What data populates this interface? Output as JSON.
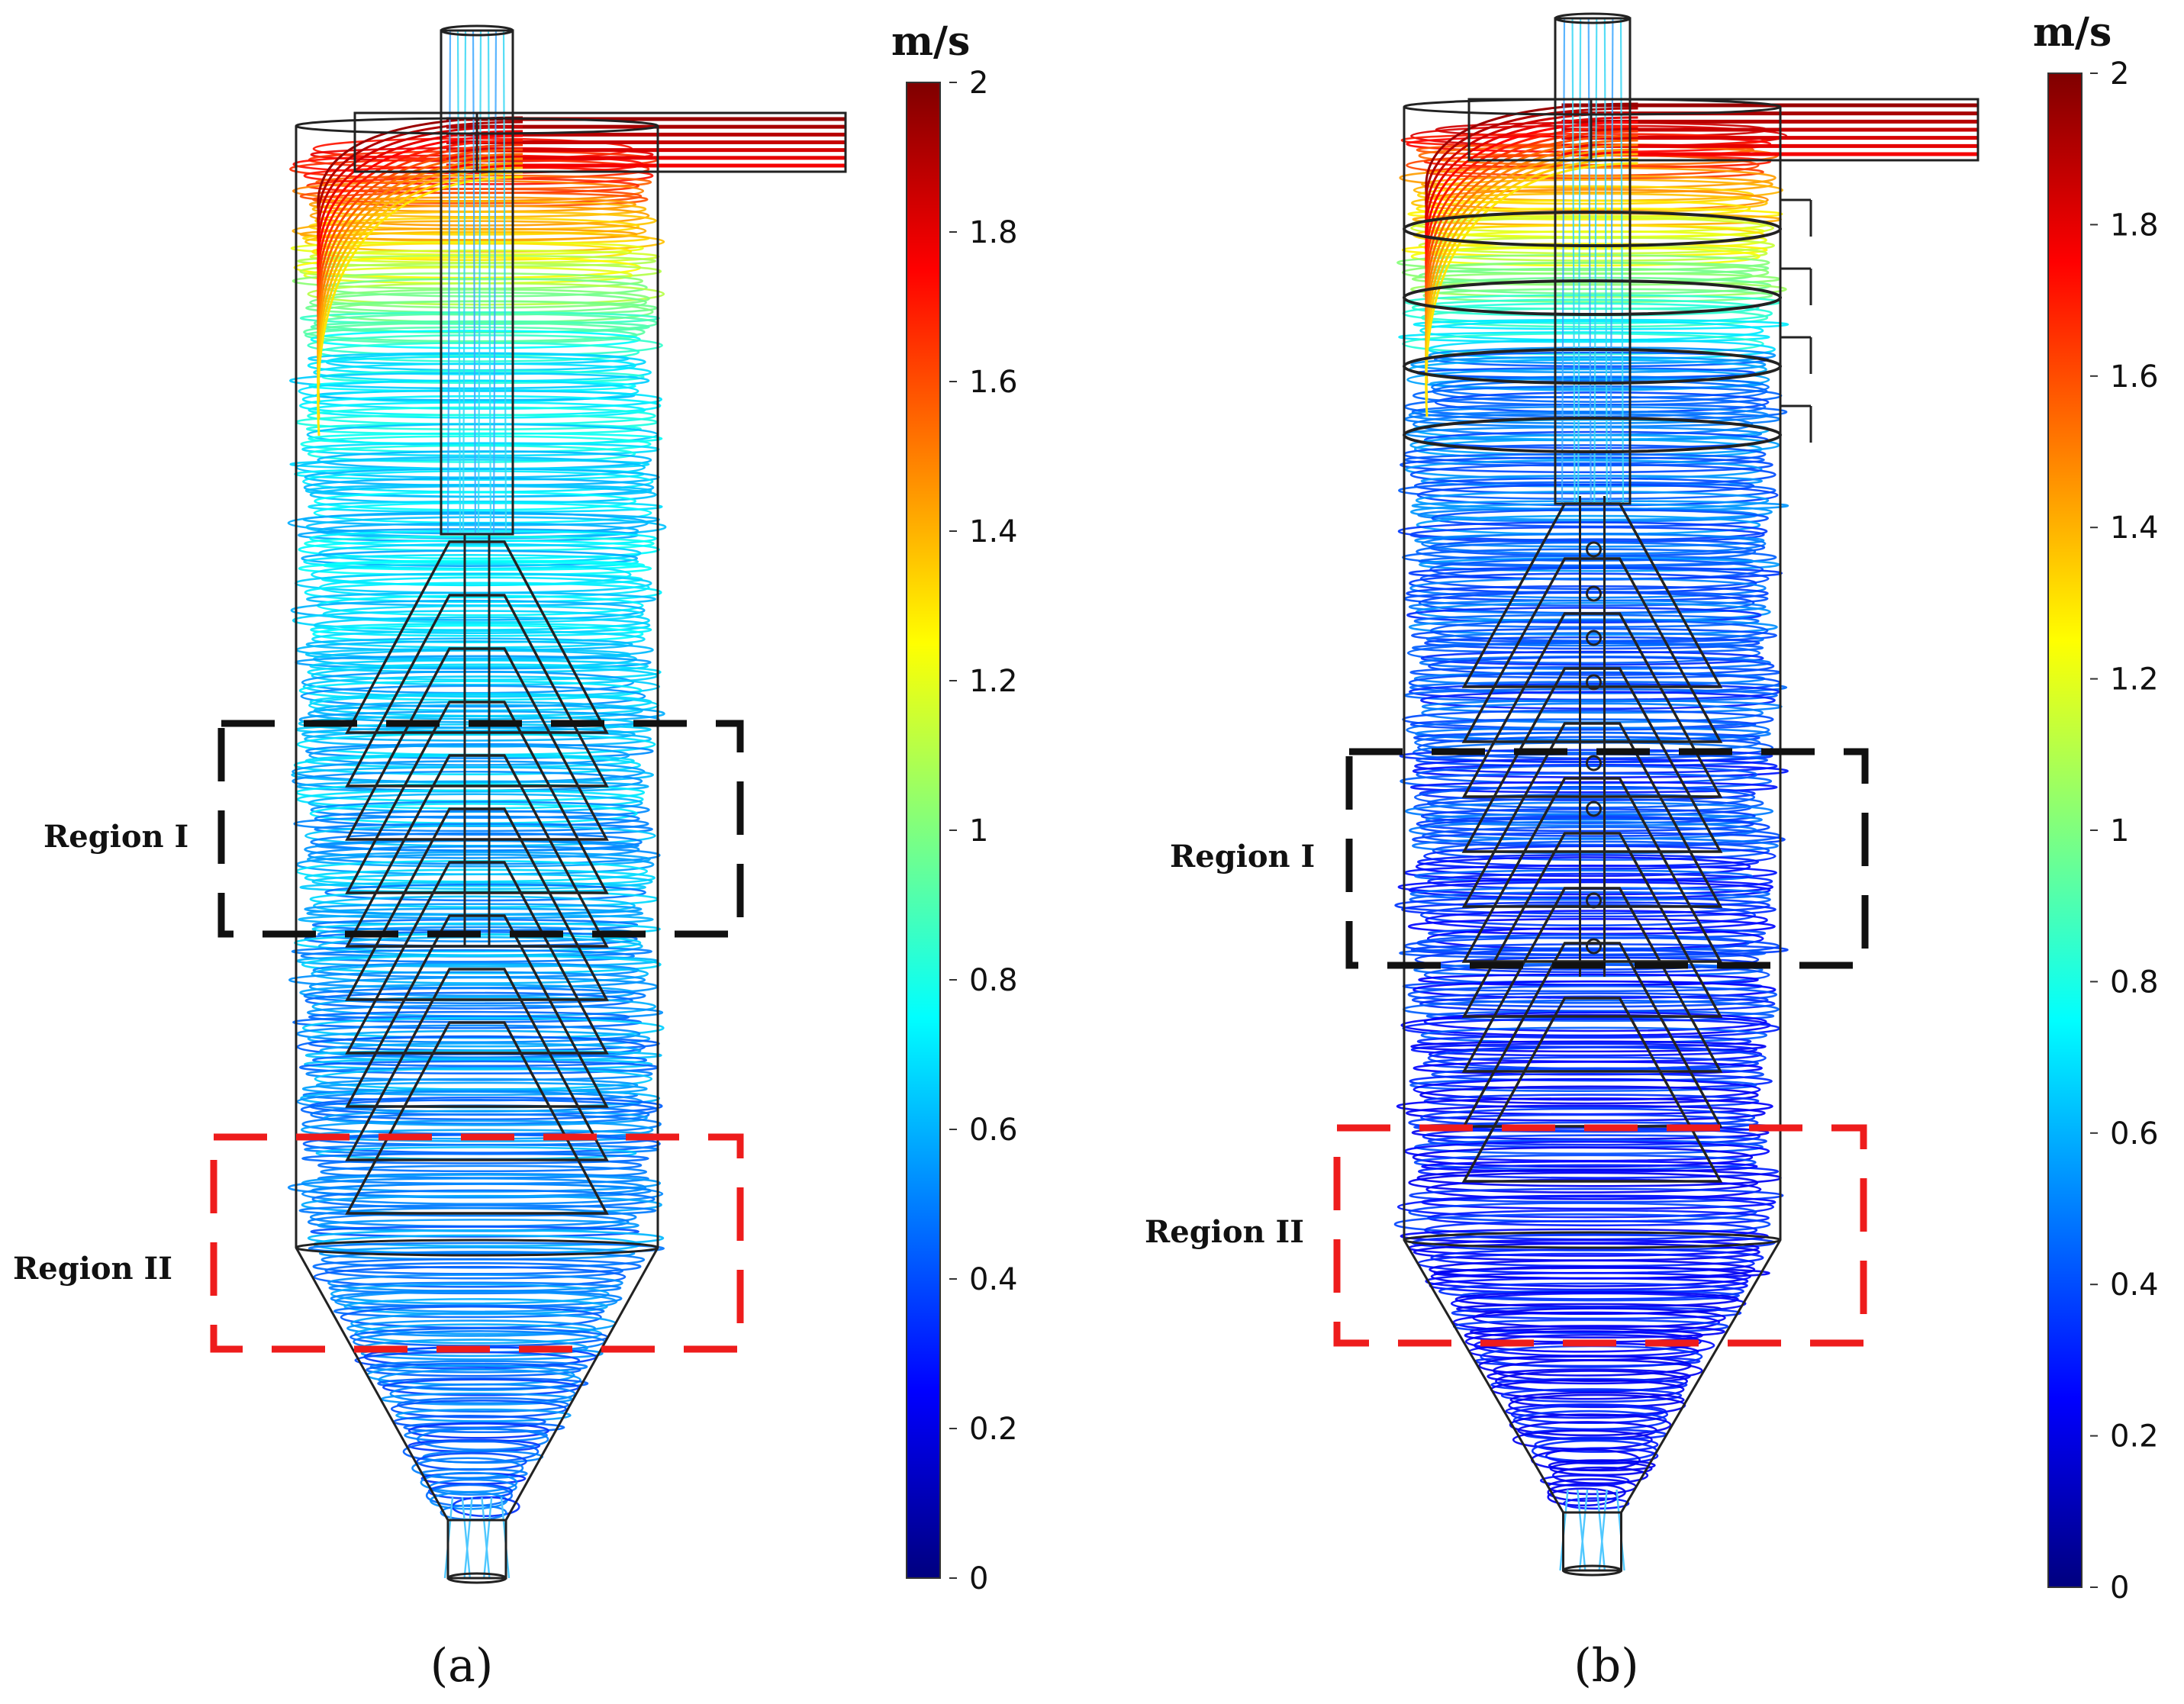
{
  "panels": [
    {
      "id": "a",
      "caption": "(a)",
      "region1_label": "Region I",
      "region2_label": "Region II"
    },
    {
      "id": "b",
      "caption": "(b)",
      "region1_label": "Region I",
      "region2_label": "Region II"
    }
  ],
  "colorbar": {
    "unit": "m/s",
    "min": 0,
    "max": 2,
    "ticks": [
      "2",
      "1.8",
      "1.6",
      "1.4",
      "1.2",
      "1",
      "0.8",
      "0.6",
      "0.4",
      "0.2",
      "0"
    ],
    "colormap": [
      "#00007f",
      "#0000ff",
      "#007fff",
      "#00ffff",
      "#7fff7f",
      "#ffff00",
      "#ff7f00",
      "#ff0000",
      "#7f0000"
    ]
  },
  "colors": {
    "region1_box": "#111111",
    "region2_box": "#ee1c1c",
    "outline": "#222222"
  }
}
